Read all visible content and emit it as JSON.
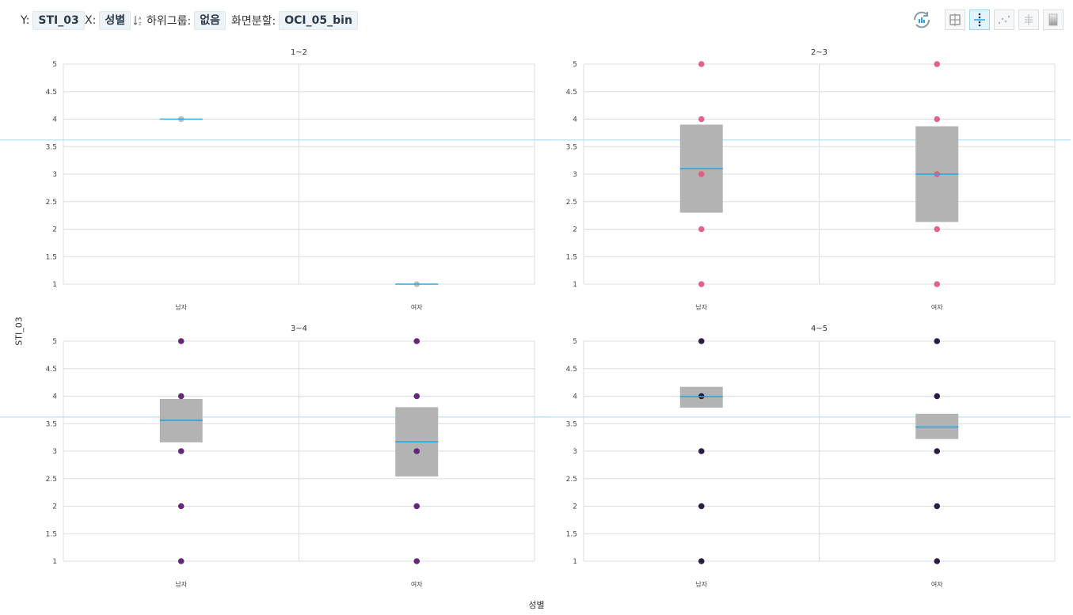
{
  "toolbar": {
    "y_label": "Y:",
    "y_value": "STI_03",
    "x_label": "X:",
    "x_value": "성별",
    "subgroup_label": "하위그룹:",
    "subgroup_value": "없음",
    "split_label": "화면분할:",
    "split_value": "OCI_05_bin",
    "sort_icon_text": "↓A Z",
    "tools": [
      "refresh-icon",
      "frame-icon",
      "boxplot-dots-icon",
      "scatter-icon",
      "histogram-icon",
      "gradient-icon"
    ]
  },
  "axis_titles": {
    "y": "STI_03",
    "x": "성별"
  },
  "colors": {
    "median": "#2aa5dc",
    "reference_line": "#a8d8ee",
    "box_fill": "#b3b3b3",
    "panel_1": "#bbbbbb",
    "panel_2": "#e05b82",
    "panel_3": "#5f1a78",
    "panel_4": "#22113a"
  },
  "chart_data": [
    {
      "type": "box",
      "title": "1~2",
      "categories": [
        "남자",
        "여자"
      ],
      "ylim": [
        1,
        5
      ],
      "yticks": [
        "1",
        "1.5",
        "2",
        "2.5",
        "3",
        "3.5",
        "4",
        "4.5",
        "5"
      ],
      "reference_line": 3.62,
      "point_color": "#bbbbbb",
      "boxes": [
        {
          "category": "남자",
          "q1": 4,
          "median": 4,
          "q3": 4,
          "points": [
            4
          ]
        },
        {
          "category": "여자",
          "q1": 1,
          "median": 1,
          "q3": 1,
          "points": [
            1
          ]
        }
      ]
    },
    {
      "type": "box",
      "title": "2~3",
      "categories": [
        "남자",
        "여자"
      ],
      "ylim": [
        1,
        5
      ],
      "yticks": [
        "1",
        "1.5",
        "2",
        "2.5",
        "3",
        "3.5",
        "4",
        "4.5",
        "5"
      ],
      "reference_line": 3.62,
      "point_color": "#e05b82",
      "boxes": [
        {
          "category": "남자",
          "q1": 2.3,
          "median": 3.1,
          "q3": 3.9,
          "points": [
            1,
            2,
            3,
            4,
            5
          ]
        },
        {
          "category": "여자",
          "q1": 2.13,
          "median": 3.0,
          "q3": 3.87,
          "points": [
            1,
            2,
            3,
            4,
            5
          ]
        }
      ]
    },
    {
      "type": "box",
      "title": "3~4",
      "categories": [
        "남자",
        "여자"
      ],
      "ylim": [
        1,
        5
      ],
      "yticks": [
        "1",
        "1.5",
        "2",
        "2.5",
        "3",
        "3.5",
        "4",
        "4.5",
        "5"
      ],
      "reference_line": 3.62,
      "point_color": "#5f1a78",
      "boxes": [
        {
          "category": "남자",
          "q1": 3.16,
          "median": 3.56,
          "q3": 3.95,
          "points": [
            1,
            2,
            3,
            4,
            5
          ]
        },
        {
          "category": "여자",
          "q1": 2.54,
          "median": 3.17,
          "q3": 3.8,
          "points": [
            1,
            2,
            3,
            4,
            5
          ]
        }
      ]
    },
    {
      "type": "box",
      "title": "4~5",
      "categories": [
        "남자",
        "여자"
      ],
      "ylim": [
        1,
        5
      ],
      "yticks": [
        "1",
        "1.5",
        "2",
        "2.5",
        "3",
        "3.5",
        "4",
        "4.5",
        "5"
      ],
      "reference_line": 3.62,
      "point_color": "#22113a",
      "boxes": [
        {
          "category": "남자",
          "q1": 3.79,
          "median": 3.99,
          "q3": 4.17,
          "points": [
            1,
            2,
            3,
            4,
            5
          ]
        },
        {
          "category": "여자",
          "q1": 3.22,
          "median": 3.44,
          "q3": 3.68,
          "points": [
            1,
            2,
            3,
            4,
            5
          ]
        }
      ]
    }
  ]
}
